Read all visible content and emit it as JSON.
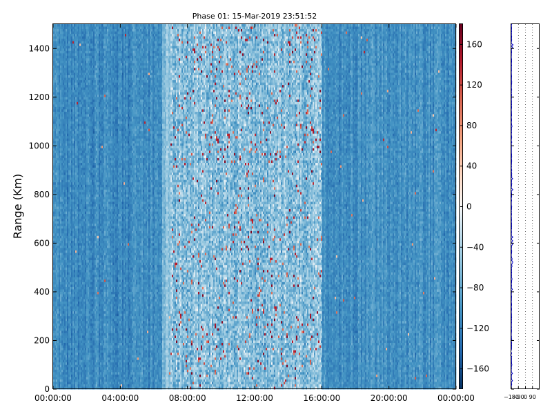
{
  "chart_data": [
    {
      "type": "heatmap",
      "title": "Phase 01: 15-Mar-2019 23:51:52",
      "ylabel": "Range (Km)",
      "xlabel": "",
      "xlim": [
        "00:00:00",
        "24:00:00"
      ],
      "xticks": [
        "00:00:00",
        "04:00:00",
        "08:00:00",
        "12:00:00",
        "16:00:00",
        "20:00:00",
        "00:00:00"
      ],
      "ylim": [
        0,
        1500
      ],
      "yticks": [
        "0",
        "200",
        "400",
        "600",
        "800",
        "1000",
        "1200",
        "1400"
      ],
      "colorbar": {
        "colormap": "RdBu_r",
        "range": [
          -180,
          180
        ],
        "ticks": [
          "−160",
          "−120",
          "−80",
          "−40",
          "0",
          "40",
          "80",
          "120",
          "160"
        ]
      },
      "profile_typical": [
        {
          "time_range": [
            "00:00",
            "06:30"
          ],
          "phase_deg": -110
        },
        {
          "time_range": [
            "06:30",
            "16:00"
          ],
          "phase_deg": -60
        },
        {
          "time_range": [
            "16:00",
            "24:00"
          ],
          "phase_deg": -105
        }
      ],
      "grid": false
    },
    {
      "type": "line",
      "title": "",
      "xlabel": "",
      "ylabel": "",
      "xlim": [
        -180,
        180
      ],
      "xticks": [
        "−180",
        "−90",
        "0",
        "90"
      ],
      "ylim": [
        0,
        1500
      ],
      "line_color": "#0000cc",
      "grid": "dotted vertical",
      "series_description_value_deg": -180
    }
  ],
  "colors": {
    "axis": "#000000",
    "line": "#0000cc"
  }
}
